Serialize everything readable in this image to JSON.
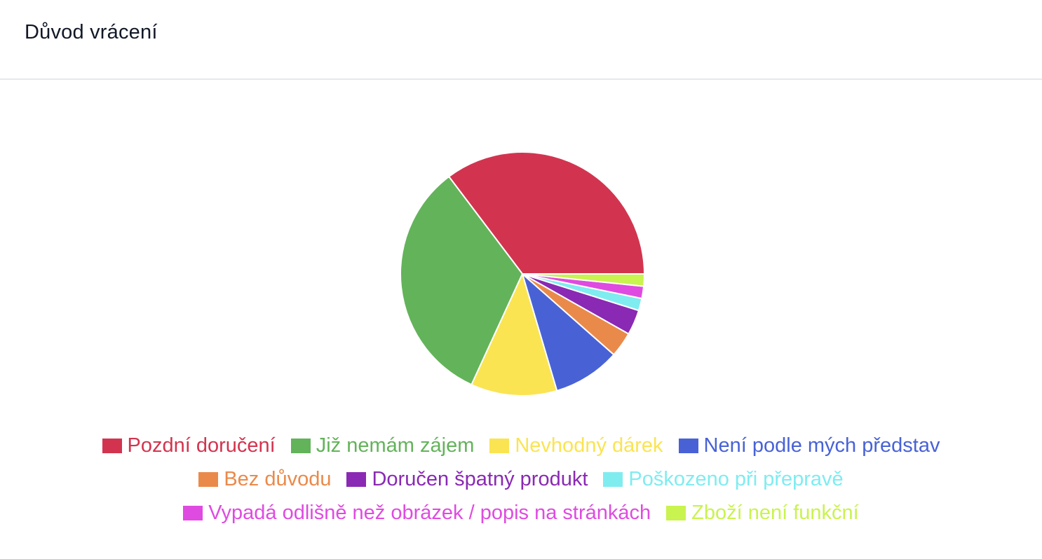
{
  "title": "Důvod vrácení",
  "chart_data": {
    "type": "pie",
    "title": "Důvod vrácení",
    "legend_position": "bottom",
    "slices": [
      {
        "label": "Pozdní doručení",
        "value": 34.9,
        "color": "#d2344f"
      },
      {
        "label": "Již nemám zájem",
        "value": 32.5,
        "color": "#63b35a"
      },
      {
        "label": "Nevhodný dárek",
        "value": 11.3,
        "color": "#fae452"
      },
      {
        "label": "Není podle mých představ",
        "value": 8.8,
        "color": "#4862d6"
      },
      {
        "label": "Bez důvodu",
        "value": 3.3,
        "color": "#ea8a4a"
      },
      {
        "label": "Doručen špatný produkt",
        "value": 3.3,
        "color": "#8a29b3"
      },
      {
        "label": "Poškozeno při přepravě",
        "value": 1.6,
        "color": "#7fecf0"
      },
      {
        "label": "Vypadá odlišně než obrázek / popis na stránkách",
        "value": 1.6,
        "color": "#df4be0"
      },
      {
        "label": "Zboží není funkční",
        "value": 1.6,
        "color": "#c9f34f"
      }
    ]
  }
}
